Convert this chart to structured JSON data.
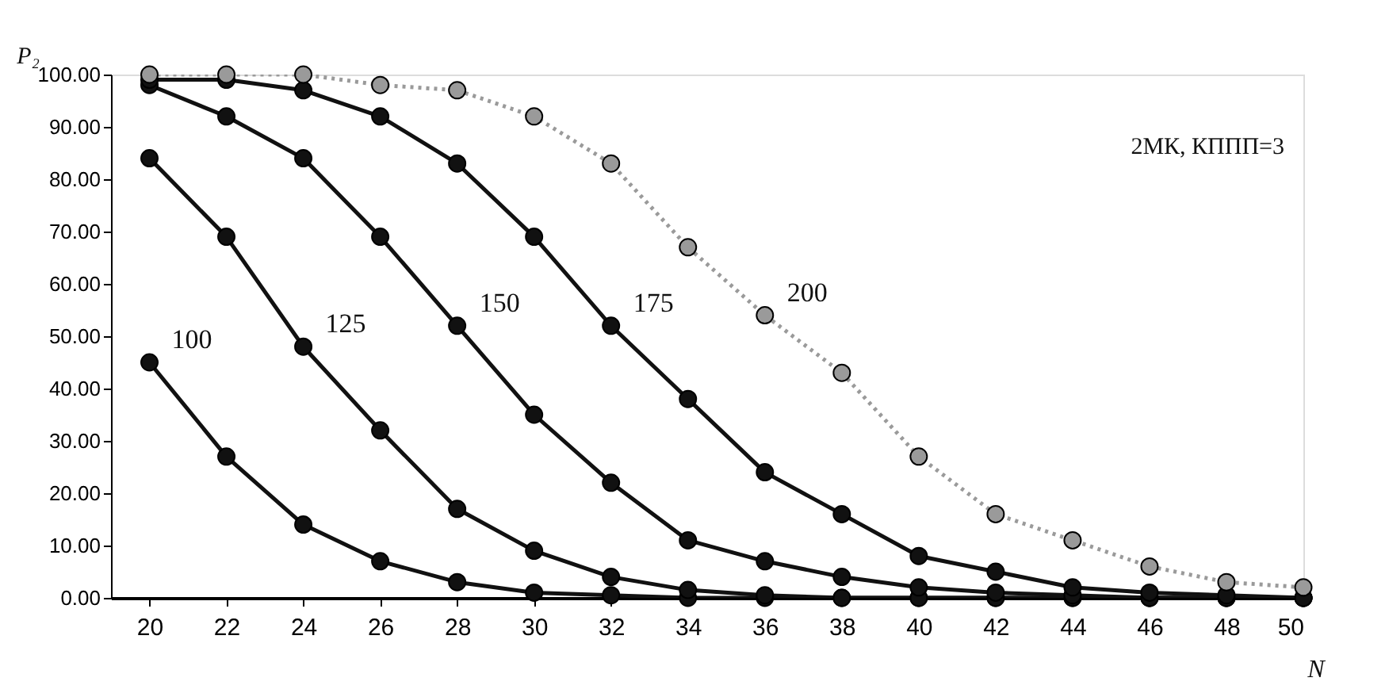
{
  "chart_data": {
    "type": "line",
    "xlabel": "N",
    "ylabel": "P₂",
    "x": [
      20,
      22,
      24,
      26,
      28,
      30,
      32,
      34,
      36,
      38,
      40,
      42,
      44,
      46,
      48,
      50
    ],
    "series": [
      {
        "name": "100",
        "color": "#111111",
        "values": [
          45,
          27,
          14,
          7,
          3,
          1,
          0.5,
          0,
          0,
          0,
          0,
          0,
          0,
          0,
          0,
          0
        ]
      },
      {
        "name": "125",
        "color": "#111111",
        "values": [
          84,
          69,
          48,
          32,
          17,
          9,
          4,
          1.5,
          0.5,
          0,
          0,
          0,
          0,
          0,
          0,
          0
        ]
      },
      {
        "name": "150",
        "color": "#111111",
        "values": [
          98,
          92,
          84,
          69,
          52,
          35,
          22,
          11,
          7,
          4,
          2,
          1,
          0.5,
          0,
          0,
          0
        ]
      },
      {
        "name": "175",
        "color": "#111111",
        "values": [
          99,
          99,
          97,
          92,
          83,
          69,
          52,
          38,
          24,
          16,
          8,
          5,
          2,
          1,
          0.5,
          0
        ]
      },
      {
        "name": "200",
        "color": "#9a9a9a",
        "line_style": "dotted",
        "values": [
          100,
          100,
          100,
          98,
          97,
          92,
          83,
          67,
          54,
          43,
          27,
          16,
          11,
          6,
          3,
          2
        ]
      }
    ],
    "annotations": [
      "2МК, КППП=3"
    ],
    "xlim": [
      19,
      50
    ],
    "xticks": [
      20,
      22,
      24,
      26,
      28,
      30,
      32,
      34,
      36,
      38,
      40,
      42,
      44,
      46,
      48,
      50
    ],
    "ylim": [
      0,
      100
    ],
    "yticks": [
      {
        "value": 0,
        "label": "0.00"
      },
      {
        "value": 10,
        "label": "10.00"
      },
      {
        "value": 20,
        "label": "20.00"
      },
      {
        "value": 30,
        "label": "30.00"
      },
      {
        "value": 40,
        "label": "40.00"
      },
      {
        "value": 50,
        "label": "50.00"
      },
      {
        "value": 60,
        "label": "60.00"
      },
      {
        "value": 70,
        "label": "70.00"
      },
      {
        "value": 80,
        "label": "80.00"
      },
      {
        "value": 90,
        "label": "90.00"
      },
      {
        "value": 100,
        "label": "100.00"
      }
    ],
    "marker": "circle",
    "grid": false
  }
}
